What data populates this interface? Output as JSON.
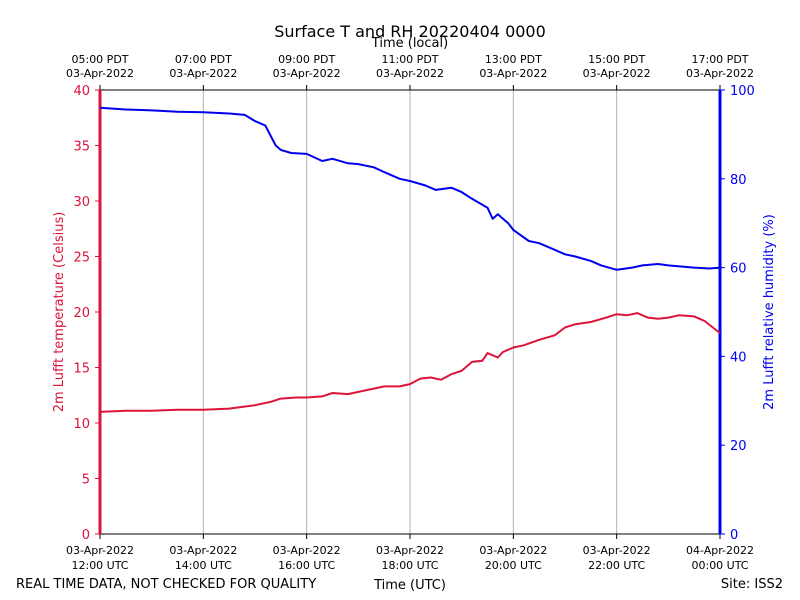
{
  "chart_data": {
    "type": "line",
    "title": "Surface T and RH 20220404 0000",
    "top_axis_label": "Time (local)",
    "xlabel": "Time (UTC)",
    "ylabel_left": "2m Lufft temperature (Celsius)",
    "ylabel_right": "2m Lufft relative humidity (%)",
    "ylim_left": [
      0,
      40
    ],
    "ylim_right": [
      0,
      100
    ],
    "left_ticks": [
      "0",
      "5",
      "10",
      "15",
      "20",
      "25",
      "30",
      "35",
      "40"
    ],
    "right_ticks": [
      "0",
      "20",
      "40",
      "60",
      "80",
      "100"
    ],
    "x_range_hours": [
      12,
      24
    ],
    "bottom_ticks": [
      {
        "date": "03-Apr-2022",
        "time": "12:00 UTC"
      },
      {
        "date": "03-Apr-2022",
        "time": "14:00 UTC"
      },
      {
        "date": "03-Apr-2022",
        "time": "16:00 UTC"
      },
      {
        "date": "03-Apr-2022",
        "time": "18:00 UTC"
      },
      {
        "date": "03-Apr-2022",
        "time": "20:00 UTC"
      },
      {
        "date": "03-Apr-2022",
        "time": "22:00 UTC"
      },
      {
        "date": "04-Apr-2022",
        "time": "00:00 UTC"
      }
    ],
    "top_ticks": [
      {
        "time": "05:00 PDT",
        "date": "03-Apr-2022"
      },
      {
        "time": "07:00 PDT",
        "date": "03-Apr-2022"
      },
      {
        "time": "09:00 PDT",
        "date": "03-Apr-2022"
      },
      {
        "time": "11:00 PDT",
        "date": "03-Apr-2022"
      },
      {
        "time": "13:00 PDT",
        "date": "03-Apr-2022"
      },
      {
        "time": "15:00 PDT",
        "date": "03-Apr-2022"
      },
      {
        "time": "17:00 PDT",
        "date": "03-Apr-2022"
      }
    ],
    "grid": "vertical",
    "series": [
      {
        "name": "2m Lufft temperature",
        "axis": "left",
        "color": "#dc143c",
        "x": [
          12.0,
          12.5,
          13.0,
          13.5,
          14.0,
          14.5,
          15.0,
          15.3,
          15.5,
          15.8,
          16.0,
          16.3,
          16.5,
          16.8,
          17.0,
          17.3,
          17.5,
          17.8,
          18.0,
          18.2,
          18.4,
          18.6,
          18.8,
          19.0,
          19.2,
          19.4,
          19.5,
          19.7,
          19.8,
          20.0,
          20.2,
          20.5,
          20.8,
          21.0,
          21.2,
          21.5,
          21.8,
          22.0,
          22.2,
          22.4,
          22.6,
          22.8,
          23.0,
          23.2,
          23.5,
          23.7,
          24.0
        ],
        "values": [
          11.0,
          11.1,
          11.1,
          11.2,
          11.2,
          11.3,
          11.6,
          11.9,
          12.2,
          12.3,
          12.3,
          12.4,
          12.7,
          12.6,
          12.8,
          13.1,
          13.3,
          13.3,
          13.5,
          14.0,
          14.1,
          13.9,
          14.4,
          14.7,
          15.5,
          15.6,
          16.3,
          15.9,
          16.4,
          16.8,
          17.0,
          17.5,
          17.9,
          18.6,
          18.9,
          19.1,
          19.5,
          19.8,
          19.7,
          19.9,
          19.5,
          19.4,
          19.5,
          19.7,
          19.6,
          19.2,
          18.1
        ]
      },
      {
        "name": "2m Lufft relative humidity",
        "axis": "right",
        "color": "#0000ee",
        "x": [
          12.0,
          12.5,
          13.0,
          13.5,
          14.0,
          14.5,
          14.8,
          15.0,
          15.2,
          15.4,
          15.5,
          15.7,
          16.0,
          16.3,
          16.5,
          16.8,
          17.0,
          17.3,
          17.5,
          17.8,
          18.0,
          18.3,
          18.5,
          18.8,
          19.0,
          19.2,
          19.5,
          19.6,
          19.7,
          19.9,
          20.0,
          20.3,
          20.5,
          20.8,
          21.0,
          21.2,
          21.5,
          21.7,
          22.0,
          22.3,
          22.5,
          22.8,
          23.0,
          23.3,
          23.5,
          23.8,
          24.0
        ],
        "values": [
          96.0,
          95.6,
          95.4,
          95.1,
          95.0,
          94.7,
          94.4,
          93.0,
          92.0,
          87.5,
          86.5,
          85.8,
          85.6,
          84.0,
          84.5,
          83.5,
          83.3,
          82.6,
          81.5,
          80.0,
          79.5,
          78.5,
          77.5,
          78.0,
          77.0,
          75.5,
          73.5,
          71.0,
          72.0,
          70.0,
          68.5,
          66.0,
          65.5,
          64.0,
          63.0,
          62.5,
          61.5,
          60.5,
          59.5,
          60.0,
          60.5,
          60.8,
          60.5,
          60.2,
          60.0,
          59.8,
          60.0
        ]
      }
    ]
  },
  "footer": {
    "disclaimer": "REAL TIME DATA, NOT CHECKED FOR QUALITY",
    "site": "Site: ISS2"
  }
}
